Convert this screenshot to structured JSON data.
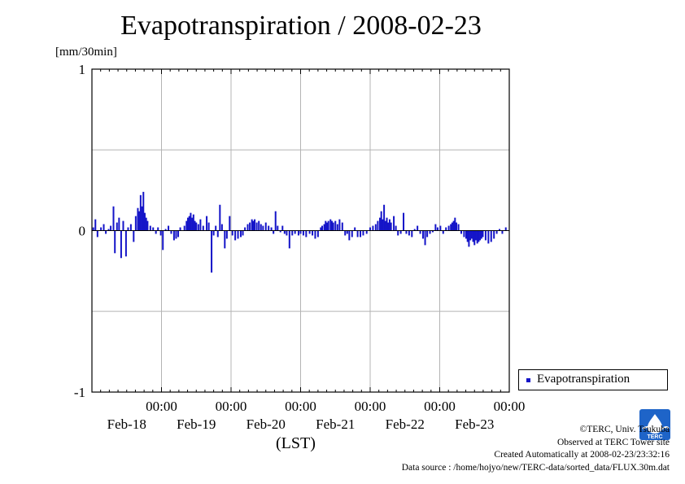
{
  "title": "Evapotranspiration / 2008-02-23",
  "unit": "[mm/30min]",
  "axis_bottom_label": "(LST)",
  "legend": {
    "label": "Evapotranspiration"
  },
  "colors": {
    "series": "#1414c8",
    "grid": "#b4b4b4",
    "axis": "#000000"
  },
  "credits": {
    "copyright": "©TERC, Univ. Tsukuba",
    "site": "Observed at TERC Tower site",
    "created": "Created Automatically at 2008-02-23/23:32:16",
    "source": "Data source : /home/hojyo/new/TERC-data/sorted_data/FLUX.30m.dat"
  },
  "logo": {
    "icon": "terc-logo-icon",
    "text": "TERC"
  },
  "chart_data": {
    "type": "bar",
    "title": "Evapotranspiration / 2008-02-23",
    "ylabel": "[mm/30min]",
    "xlabel": "(LST)",
    "ylim": [
      -1,
      1
    ],
    "xlim_days": [
      0,
      6
    ],
    "y_ticks": [
      -1,
      0,
      1
    ],
    "x_ticks": [
      {
        "time": "00:00",
        "date": "Feb-18"
      },
      {
        "time": "00:00",
        "date": "Feb-19"
      },
      {
        "time": "00:00",
        "date": "Feb-20"
      },
      {
        "time": "00:00",
        "date": "Feb-21"
      },
      {
        "time": "00:00",
        "date": "Feb-22"
      },
      {
        "time": "00:00",
        "date": "Feb-23"
      }
    ],
    "grid": true,
    "legend_position": "bottom-right, outside plot",
    "series": [
      {
        "name": "Evapotranspiration",
        "interval": "30min",
        "points": [
          [
            0.02,
            0.02
          ],
          [
            0.05,
            0.07
          ],
          [
            0.08,
            -0.04
          ],
          [
            0.13,
            0.02
          ],
          [
            0.17,
            0.04
          ],
          [
            0.2,
            -0.02
          ],
          [
            0.24,
            0.01
          ],
          [
            0.27,
            0.03
          ],
          [
            0.31,
            0.15
          ],
          [
            0.33,
            -0.14
          ],
          [
            0.36,
            0.05
          ],
          [
            0.39,
            0.08
          ],
          [
            0.42,
            -0.17
          ],
          [
            0.45,
            0.06
          ],
          [
            0.49,
            -0.16
          ],
          [
            0.52,
            0.02
          ],
          [
            0.56,
            0.04
          ],
          [
            0.6,
            -0.07
          ],
          [
            0.63,
            0.09
          ],
          [
            0.66,
            0.14
          ],
          [
            0.68,
            0.12
          ],
          [
            0.7,
            0.22
          ],
          [
            0.72,
            0.15
          ],
          [
            0.74,
            0.24
          ],
          [
            0.76,
            0.11
          ],
          [
            0.78,
            0.08
          ],
          [
            0.8,
            0.06
          ],
          [
            0.84,
            0.03
          ],
          [
            0.88,
            0.02
          ],
          [
            0.92,
            -0.02
          ],
          [
            0.95,
            0.02
          ],
          [
            0.99,
            -0.03
          ],
          [
            1.02,
            -0.12
          ],
          [
            1.06,
            0.01
          ],
          [
            1.1,
            0.03
          ],
          [
            1.14,
            -0.02
          ],
          [
            1.18,
            -0.06
          ],
          [
            1.21,
            -0.05
          ],
          [
            1.24,
            -0.04
          ],
          [
            1.27,
            0.02
          ],
          [
            1.33,
            0.03
          ],
          [
            1.36,
            0.06
          ],
          [
            1.38,
            0.08
          ],
          [
            1.4,
            0.09
          ],
          [
            1.42,
            0.11
          ],
          [
            1.44,
            0.08
          ],
          [
            1.46,
            0.1
          ],
          [
            1.48,
            0.06
          ],
          [
            1.5,
            0.05
          ],
          [
            1.53,
            0.04
          ],
          [
            1.56,
            0.07
          ],
          [
            1.6,
            0.03
          ],
          [
            1.65,
            0.09
          ],
          [
            1.68,
            0.05
          ],
          [
            1.72,
            -0.26
          ],
          [
            1.75,
            -0.03
          ],
          [
            1.78,
            0.03
          ],
          [
            1.81,
            -0.04
          ],
          [
            1.84,
            0.16
          ],
          [
            1.87,
            0.04
          ],
          [
            1.91,
            -0.11
          ],
          [
            1.94,
            -0.05
          ],
          [
            1.98,
            0.09
          ],
          [
            2.02,
            -0.03
          ],
          [
            2.06,
            -0.06
          ],
          [
            2.1,
            -0.05
          ],
          [
            2.14,
            -0.04
          ],
          [
            2.17,
            -0.03
          ],
          [
            2.2,
            0.02
          ],
          [
            2.24,
            0.04
          ],
          [
            2.27,
            0.05
          ],
          [
            2.3,
            0.07
          ],
          [
            2.32,
            0.06
          ],
          [
            2.34,
            0.07
          ],
          [
            2.37,
            0.05
          ],
          [
            2.4,
            0.06
          ],
          [
            2.43,
            0.04
          ],
          [
            2.46,
            0.03
          ],
          [
            2.5,
            0.05
          ],
          [
            2.54,
            0.03
          ],
          [
            2.58,
            0.02
          ],
          [
            2.61,
            -0.02
          ],
          [
            2.64,
            0.12
          ],
          [
            2.67,
            0.03
          ],
          [
            2.71,
            -0.01
          ],
          [
            2.74,
            0.03
          ],
          [
            2.77,
            -0.02
          ],
          [
            2.8,
            -0.03
          ],
          [
            2.84,
            -0.11
          ],
          [
            2.88,
            -0.03
          ],
          [
            2.92,
            -0.02
          ],
          [
            2.97,
            -0.03
          ],
          [
            3.0,
            -0.02
          ],
          [
            3.04,
            -0.03
          ],
          [
            3.08,
            -0.04
          ],
          [
            3.13,
            -0.02
          ],
          [
            3.17,
            -0.03
          ],
          [
            3.21,
            -0.05
          ],
          [
            3.25,
            -0.04
          ],
          [
            3.29,
            0.02
          ],
          [
            3.31,
            0.03
          ],
          [
            3.34,
            0.04
          ],
          [
            3.36,
            0.06
          ],
          [
            3.38,
            0.05
          ],
          [
            3.4,
            0.06
          ],
          [
            3.43,
            0.07
          ],
          [
            3.45,
            0.06
          ],
          [
            3.47,
            0.05
          ],
          [
            3.5,
            0.06
          ],
          [
            3.53,
            0.04
          ],
          [
            3.56,
            0.07
          ],
          [
            3.6,
            0.05
          ],
          [
            3.64,
            -0.03
          ],
          [
            3.67,
            -0.02
          ],
          [
            3.7,
            -0.06
          ],
          [
            3.74,
            -0.04
          ],
          [
            3.78,
            0.02
          ],
          [
            3.82,
            -0.04
          ],
          [
            3.86,
            -0.04
          ],
          [
            3.9,
            -0.03
          ],
          [
            3.95,
            -0.02
          ],
          [
            4.0,
            0.02
          ],
          [
            4.04,
            0.03
          ],
          [
            4.08,
            0.04
          ],
          [
            4.11,
            0.06
          ],
          [
            4.14,
            0.08
          ],
          [
            4.16,
            0.12
          ],
          [
            4.18,
            0.07
          ],
          [
            4.2,
            0.16
          ],
          [
            4.22,
            0.06
          ],
          [
            4.24,
            0.08
          ],
          [
            4.26,
            0.05
          ],
          [
            4.28,
            0.07
          ],
          [
            4.3,
            0.05
          ],
          [
            4.34,
            0.09
          ],
          [
            4.37,
            0.03
          ],
          [
            4.4,
            -0.03
          ],
          [
            4.44,
            -0.02
          ],
          [
            4.48,
            0.11
          ],
          [
            4.52,
            -0.02
          ],
          [
            4.56,
            -0.03
          ],
          [
            4.6,
            -0.04
          ],
          [
            4.64,
            0.01
          ],
          [
            4.68,
            0.03
          ],
          [
            4.72,
            -0.02
          ],
          [
            4.76,
            -0.05
          ],
          [
            4.79,
            -0.09
          ],
          [
            4.82,
            -0.04
          ],
          [
            4.86,
            -0.02
          ],
          [
            4.9,
            -0.01
          ],
          [
            4.94,
            0.04
          ],
          [
            4.97,
            0.02
          ],
          [
            5.01,
            0.03
          ],
          [
            5.05,
            -0.02
          ],
          [
            5.09,
            0.02
          ],
          [
            5.13,
            0.03
          ],
          [
            5.16,
            0.04
          ],
          [
            5.18,
            0.05
          ],
          [
            5.2,
            0.06
          ],
          [
            5.22,
            0.08
          ],
          [
            5.24,
            0.05
          ],
          [
            5.27,
            0.04
          ],
          [
            5.31,
            -0.02
          ],
          [
            5.35,
            -0.04
          ],
          [
            5.38,
            -0.05
          ],
          [
            5.4,
            -0.07
          ],
          [
            5.42,
            -0.1
          ],
          [
            5.44,
            -0.06
          ],
          [
            5.46,
            -0.05
          ],
          [
            5.48,
            -0.07
          ],
          [
            5.5,
            -0.09
          ],
          [
            5.52,
            -0.06
          ],
          [
            5.54,
            -0.08
          ],
          [
            5.56,
            -0.07
          ],
          [
            5.58,
            -0.06
          ],
          [
            5.6,
            -0.05
          ],
          [
            5.62,
            -0.04
          ],
          [
            5.66,
            -0.06
          ],
          [
            5.7,
            -0.08
          ],
          [
            5.74,
            -0.07
          ],
          [
            5.78,
            -0.05
          ],
          [
            5.82,
            -0.02
          ],
          [
            5.86,
            0.01
          ],
          [
            5.9,
            -0.02
          ],
          [
            5.95,
            0.02
          ]
        ]
      }
    ]
  }
}
